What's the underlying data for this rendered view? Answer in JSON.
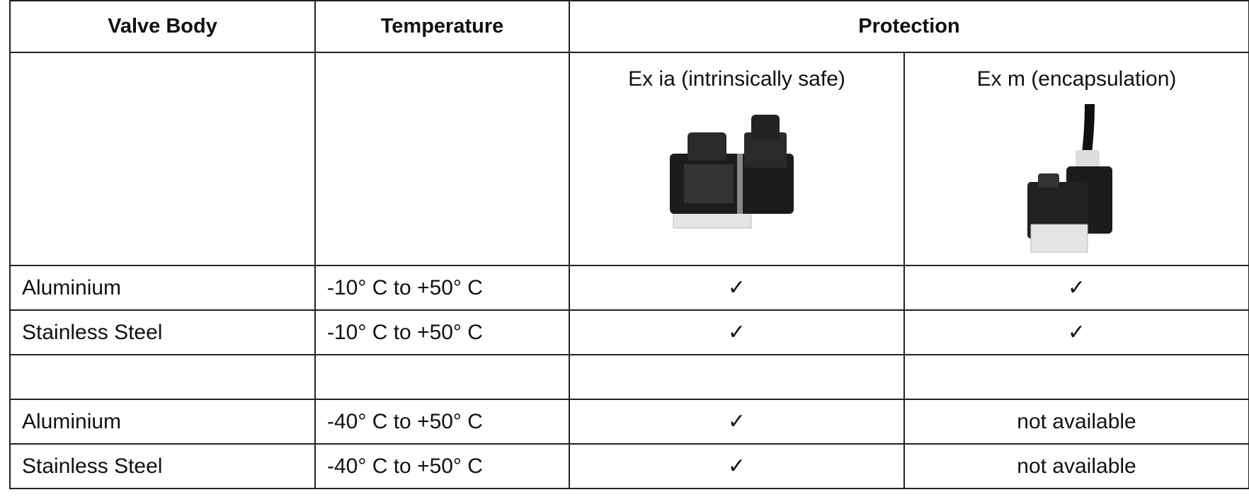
{
  "table": {
    "header": [
      "Valve Body",
      "Temperature",
      "Protection"
    ],
    "protection_types": [
      "Ex ia (intrinsically safe)",
      "Ex m (encapsulation)"
    ],
    "rows": [
      [
        "Aluminium",
        "-10° C to +50° C",
        "✓",
        "✓"
      ],
      [
        "Stainless Steel",
        "-10° C to +50° C",
        "✓",
        "✓"
      ],
      [
        "Aluminium",
        "-40° C to +50° C",
        "✓",
        "not available"
      ],
      [
        "Stainless Steel",
        "-40° C to +50° C",
        "✓",
        "not available"
      ]
    ]
  }
}
